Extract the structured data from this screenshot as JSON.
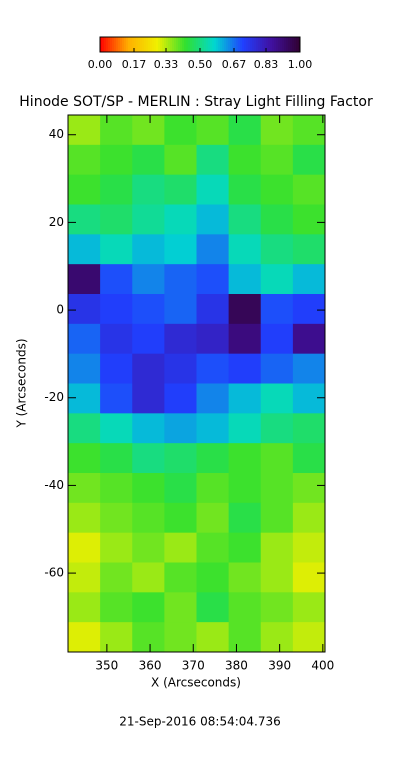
{
  "chart_data": {
    "type": "heatmap",
    "title": "Hinode SOT/SP - MERLIN : Stray Light Filling Factor",
    "x_label": "X (Arcseconds)",
    "y_label": "Y (Arcseconds)",
    "footer": "21-Sep-2016 08:54:04.736",
    "xlim": [
      341,
      400.5
    ],
    "ylim": [
      -78,
      44.5
    ],
    "xticks": [
      350,
      360,
      370,
      380,
      390,
      400
    ],
    "yticks": [
      40,
      20,
      0,
      -20,
      -40,
      -60
    ],
    "clim": [
      0,
      1
    ],
    "colorscale": [
      "#ff0000",
      "#ffb000",
      "#f0f000",
      "#30e030",
      "#00d8d0",
      "#2040ff",
      "#4010a0",
      "#300030"
    ],
    "colorbar_ticks": [
      {
        "value": 0,
        "label": "0.00"
      },
      {
        "value": 0.17,
        "label": "0.17"
      },
      {
        "value": 0.33,
        "label": "0.33"
      },
      {
        "value": 0.5,
        "label": "0.50"
      },
      {
        "value": 0.67,
        "label": "0.67"
      },
      {
        "value": 0.83,
        "label": "0.83"
      },
      {
        "value": 1,
        "label": "1.00"
      }
    ],
    "z": [
      [
        0.35,
        0.4,
        0.38,
        0.42,
        0.4,
        0.45,
        0.38,
        0.4
      ],
      [
        0.4,
        0.42,
        0.45,
        0.4,
        0.5,
        0.42,
        0.4,
        0.45
      ],
      [
        0.42,
        0.45,
        0.5,
        0.48,
        0.55,
        0.45,
        0.42,
        0.4
      ],
      [
        0.5,
        0.48,
        0.52,
        0.55,
        0.6,
        0.5,
        0.45,
        0.42
      ],
      [
        0.6,
        0.55,
        0.6,
        0.58,
        0.65,
        0.55,
        0.5,
        0.48
      ],
      [
        0.92,
        0.7,
        0.65,
        0.68,
        0.7,
        0.6,
        0.55,
        0.6
      ],
      [
        0.75,
        0.72,
        0.7,
        0.68,
        0.75,
        0.95,
        0.7,
        0.72
      ],
      [
        0.68,
        0.75,
        0.72,
        0.78,
        0.8,
        0.9,
        0.72,
        0.88
      ],
      [
        0.65,
        0.72,
        0.78,
        0.75,
        0.7,
        0.72,
        0.68,
        0.65
      ],
      [
        0.6,
        0.7,
        0.78,
        0.72,
        0.65,
        0.6,
        0.55,
        0.6
      ],
      [
        0.5,
        0.55,
        0.6,
        0.62,
        0.6,
        0.55,
        0.5,
        0.48
      ],
      [
        0.42,
        0.45,
        0.5,
        0.48,
        0.45,
        0.42,
        0.4,
        0.45
      ],
      [
        0.38,
        0.4,
        0.42,
        0.45,
        0.4,
        0.42,
        0.4,
        0.38
      ],
      [
        0.35,
        0.38,
        0.4,
        0.42,
        0.38,
        0.45,
        0.4,
        0.35
      ],
      [
        0.3,
        0.35,
        0.38,
        0.35,
        0.4,
        0.42,
        0.35,
        0.32
      ],
      [
        0.32,
        0.38,
        0.35,
        0.4,
        0.42,
        0.38,
        0.35,
        0.3
      ],
      [
        0.35,
        0.4,
        0.42,
        0.38,
        0.45,
        0.4,
        0.38,
        0.35
      ],
      [
        0.3,
        0.35,
        0.4,
        0.38,
        0.35,
        0.4,
        0.35,
        0.32
      ]
    ]
  }
}
